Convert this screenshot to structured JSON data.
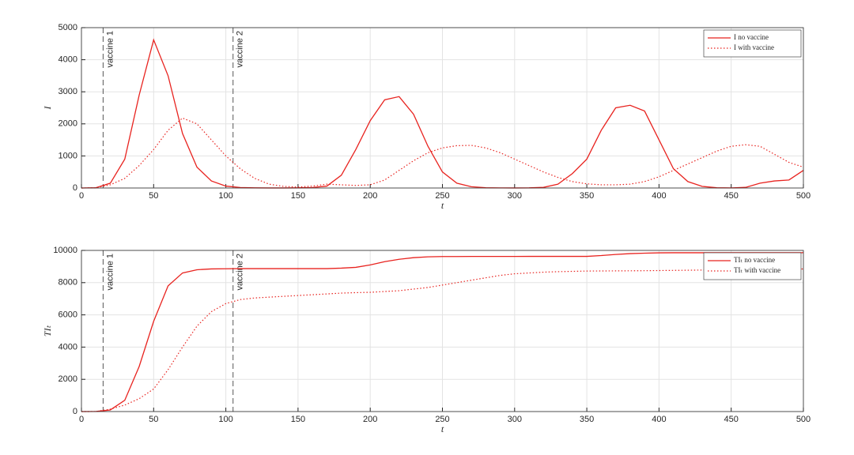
{
  "chart_data": [
    {
      "type": "line",
      "xlabel": "t",
      "ylabel": "I",
      "x": [
        0,
        10,
        20,
        30,
        40,
        50,
        60,
        70,
        80,
        90,
        100,
        110,
        120,
        130,
        140,
        150,
        160,
        170,
        180,
        190,
        200,
        210,
        220,
        230,
        240,
        250,
        260,
        270,
        280,
        290,
        300,
        310,
        320,
        330,
        340,
        350,
        360,
        370,
        380,
        390,
        400,
        410,
        420,
        430,
        440,
        450,
        460,
        470,
        480,
        490,
        500
      ],
      "series": [
        {
          "name": "I no vaccine",
          "color": "#e8231f",
          "style": "solid",
          "values": [
            0,
            10,
            150,
            900,
            2900,
            4620,
            3500,
            1700,
            650,
            220,
            60,
            15,
            5,
            2,
            2,
            5,
            15,
            60,
            400,
            1200,
            2100,
            2750,
            2850,
            2300,
            1300,
            500,
            150,
            40,
            10,
            3,
            2,
            5,
            20,
            120,
            450,
            900,
            1800,
            2500,
            2580,
            2400,
            1500,
            600,
            200,
            50,
            10,
            3,
            20,
            150,
            220,
            250,
            550
          ]
        },
        {
          "name": "I with vaccine",
          "color": "#e8231f",
          "style": "dotted",
          "values": [
            0,
            5,
            100,
            300,
            700,
            1200,
            1800,
            2180,
            2000,
            1500,
            1000,
            600,
            300,
            120,
            50,
            30,
            60,
            120,
            100,
            80,
            100,
            250,
            550,
            850,
            1100,
            1250,
            1320,
            1330,
            1250,
            1100,
            900,
            700,
            500,
            330,
            200,
            130,
            100,
            100,
            120,
            200,
            350,
            550,
            750,
            950,
            1150,
            1300,
            1350,
            1300,
            1050,
            800,
            650
          ]
        }
      ],
      "xlim": [
        0,
        500
      ],
      "ylim": [
        0,
        5000
      ],
      "xticks": [
        0,
        50,
        100,
        150,
        200,
        250,
        300,
        350,
        400,
        450,
        500
      ],
      "yticks": [
        0,
        1000,
        2000,
        3000,
        4000,
        5000
      ],
      "grid": true,
      "legend": "upper right",
      "vlines": [
        {
          "x": 15,
          "label": "vaccine 1"
        },
        {
          "x": 105,
          "label": "vaccine 2"
        }
      ]
    },
    {
      "type": "line",
      "xlabel": "t",
      "ylabel": "TIₜ",
      "x": [
        0,
        10,
        20,
        30,
        40,
        50,
        60,
        70,
        80,
        90,
        100,
        110,
        120,
        130,
        140,
        150,
        160,
        170,
        180,
        190,
        200,
        210,
        220,
        230,
        240,
        250,
        260,
        270,
        280,
        290,
        300,
        310,
        320,
        330,
        340,
        350,
        360,
        370,
        380,
        390,
        400,
        410,
        420,
        430,
        440,
        450,
        460,
        470,
        480,
        490,
        500
      ],
      "series": [
        {
          "name": "TIₜ no vaccine",
          "color": "#e8231f",
          "style": "solid",
          "values": [
            0,
            5,
            100,
            700,
            2800,
            5600,
            7800,
            8600,
            8800,
            8850,
            8860,
            8870,
            8870,
            8870,
            8870,
            8870,
            8870,
            8870,
            8900,
            8950,
            9100,
            9300,
            9450,
            9550,
            9600,
            9620,
            9620,
            9625,
            9625,
            9625,
            9625,
            9630,
            9630,
            9630,
            9630,
            9630,
            9680,
            9750,
            9800,
            9830,
            9850,
            9855,
            9855,
            9855,
            9855,
            9860,
            9860,
            9860,
            9860,
            9860,
            9860
          ]
        },
        {
          "name": "TIₜ with vaccine",
          "color": "#e8231f",
          "style": "dotted",
          "values": [
            0,
            3,
            150,
            400,
            800,
            1400,
            2600,
            4000,
            5300,
            6200,
            6700,
            6950,
            7050,
            7100,
            7150,
            7200,
            7250,
            7300,
            7350,
            7380,
            7400,
            7450,
            7500,
            7600,
            7700,
            7850,
            8000,
            8150,
            8300,
            8450,
            8550,
            8600,
            8650,
            8680,
            8700,
            8720,
            8725,
            8730,
            8735,
            8740,
            8750,
            8760,
            8770,
            8780,
            8790,
            8800,
            8810,
            8820,
            8830,
            8840,
            8850
          ]
        }
      ],
      "xlim": [
        0,
        500
      ],
      "ylim": [
        0,
        10000
      ],
      "xticks": [
        0,
        50,
        100,
        150,
        200,
        250,
        300,
        350,
        400,
        450,
        500
      ],
      "yticks": [
        0,
        2000,
        4000,
        6000,
        8000,
        10000
      ],
      "grid": true,
      "legend": "upper right",
      "vlines": [
        {
          "x": 15,
          "label": "vaccine 1"
        },
        {
          "x": 105,
          "label": "vaccine 2"
        }
      ]
    }
  ]
}
